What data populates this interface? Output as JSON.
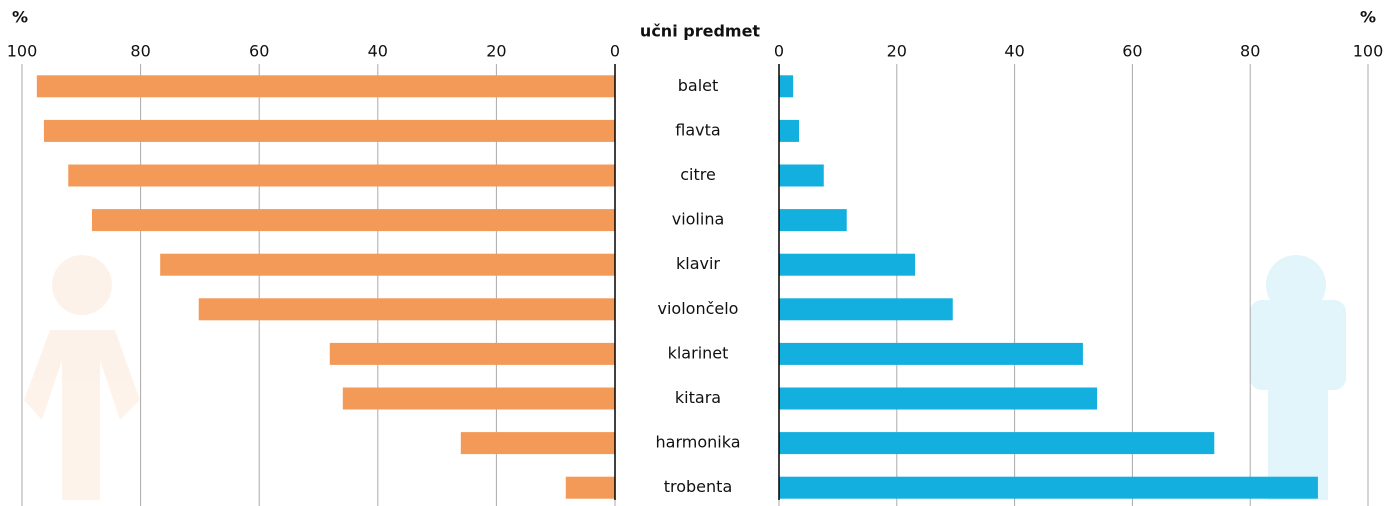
{
  "chart_data": {
    "type": "bar",
    "category_label": "učni predmet",
    "categories": [
      "balet",
      "flavta",
      "citre",
      "violina",
      "klavir",
      "violončelo",
      "klarinet",
      "kitara",
      "harmonika",
      "trobenta"
    ],
    "grid": true,
    "series": [
      {
        "side": "left",
        "color": "#f39a59",
        "axis_label": "%",
        "xlim": [
          0,
          100
        ],
        "xticks": [
          0,
          20,
          40,
          60,
          80,
          100
        ],
        "values": [
          97.5,
          96.3,
          92.2,
          88.2,
          76.7,
          70.2,
          48.1,
          45.9,
          26,
          8.3
        ]
      },
      {
        "side": "right",
        "color": "#12afdf",
        "axis_label": "%",
        "xlim": [
          0,
          100
        ],
        "xticks": [
          0,
          20,
          40,
          60,
          80,
          100
        ],
        "values": [
          2.4,
          3.4,
          7.6,
          11.5,
          23.1,
          29.5,
          51.6,
          54,
          73.9,
          91.5
        ]
      }
    ]
  }
}
